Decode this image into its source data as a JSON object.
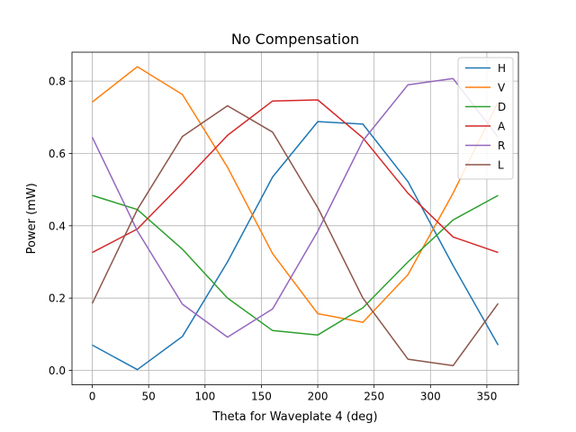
{
  "chart_data": {
    "type": "line",
    "title": "No Compensation",
    "xlabel": "Theta for Waveplate 4 (deg)",
    "ylabel": "Power (mW)",
    "xlim": [
      -18,
      378
    ],
    "ylim": [
      -0.04,
      0.88
    ],
    "xticks": [
      0,
      50,
      100,
      150,
      200,
      250,
      300,
      350
    ],
    "yticks": [
      0.0,
      0.2,
      0.4,
      0.6,
      0.8
    ],
    "xtick_labels": [
      "0",
      "50",
      "100",
      "150",
      "200",
      "250",
      "300",
      "350"
    ],
    "ytick_labels": [
      "0.0",
      "0.2",
      "0.4",
      "0.6",
      "0.8"
    ],
    "grid": true,
    "legend_position": "top-right",
    "x": [
      0,
      40,
      80,
      120,
      160,
      200,
      240,
      280,
      320,
      360
    ],
    "series": [
      {
        "name": "H",
        "color": "#1f77b4",
        "values": [
          0.07,
          0.002,
          0.094,
          0.3,
          0.535,
          0.688,
          0.681,
          0.522,
          0.29,
          0.07
        ]
      },
      {
        "name": "V",
        "color": "#ff7f0e",
        "values": [
          0.742,
          0.84,
          0.763,
          0.562,
          0.323,
          0.157,
          0.133,
          0.265,
          0.49,
          0.742
        ]
      },
      {
        "name": "D",
        "color": "#2ca02c",
        "values": [
          0.484,
          0.445,
          0.335,
          0.2,
          0.11,
          0.098,
          0.173,
          0.3,
          0.416,
          0.484
        ]
      },
      {
        "name": "A",
        "color": "#d62728",
        "values": [
          0.326,
          0.391,
          0.518,
          0.65,
          0.745,
          0.748,
          0.643,
          0.49,
          0.369,
          0.326
        ]
      },
      {
        "name": "R",
        "color": "#9467bd",
        "values": [
          0.645,
          0.386,
          0.183,
          0.092,
          0.17,
          0.385,
          0.635,
          0.79,
          0.807,
          0.645
        ]
      },
      {
        "name": "L",
        "color": "#8c564b",
        "values": [
          0.185,
          0.445,
          0.647,
          0.732,
          0.659,
          0.45,
          0.2,
          0.031,
          0.013,
          0.185
        ]
      }
    ]
  }
}
